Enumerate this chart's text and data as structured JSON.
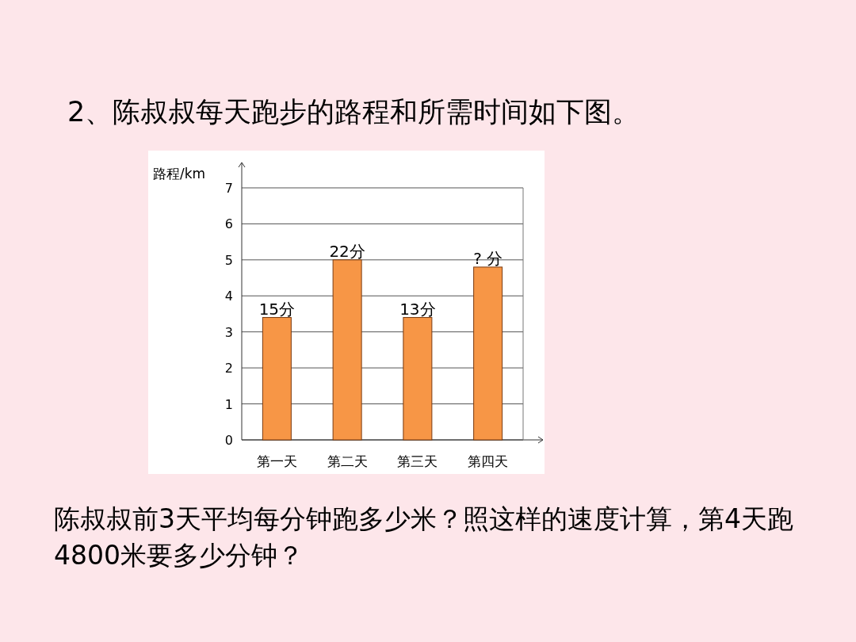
{
  "chart_data": {
    "type": "bar",
    "title": "2、陈叔叔每天跑步的路程和所需时间如下图。",
    "ylabel": "路程/km",
    "categories": [
      "第一天",
      "第二天",
      "第三天",
      "第四天"
    ],
    "values": [
      3.4,
      5,
      3.4,
      4.8
    ],
    "color": "#f79646",
    "ylim": [
      0,
      7
    ],
    "yticks": [
      0,
      1,
      2,
      3,
      4,
      5,
      6,
      7
    ],
    "grid": "y",
    "annotations": [
      {
        "text": "15分",
        "x": "第一天",
        "y": 3.4
      },
      {
        "text": "22分",
        "x": "第二天",
        "y": 5
      },
      {
        "text": "13分",
        "x": "第三天",
        "y": 3.4
      },
      {
        "text": "? 分",
        "x": "第四天",
        "y": 4.8
      },
      "陈叔叔前3天平均每分钟跑多少米？照这样的速度计算，第4天跑4800米要多少分钟？"
    ]
  }
}
